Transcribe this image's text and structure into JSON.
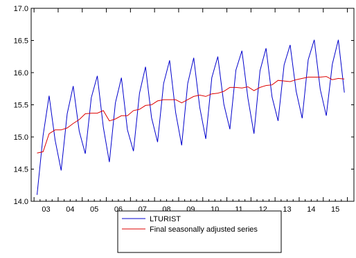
{
  "chart_data": {
    "type": "line",
    "title": "",
    "xlabel": "",
    "ylabel": "",
    "ylim": [
      14.0,
      17.0
    ],
    "yticks": [
      "14.0",
      "14.5",
      "15.0",
      "15.5",
      "16.0",
      "16.5",
      "17.0"
    ],
    "xticks": [
      "03",
      "04",
      "05",
      "06",
      "07",
      "08",
      "09",
      "10",
      "11",
      "12",
      "13",
      "14",
      "15"
    ],
    "x_start": "2003Q1",
    "frequency": "quarterly",
    "grid": false,
    "legend_position": "bottom-center",
    "series": [
      {
        "name": "LTURIST",
        "color": "#0000cc",
        "values": [
          14.1,
          15.02,
          15.64,
          14.95,
          14.48,
          15.36,
          15.79,
          15.09,
          14.74,
          15.61,
          15.95,
          15.15,
          14.61,
          15.53,
          15.92,
          15.11,
          14.78,
          15.68,
          16.09,
          15.3,
          14.92,
          15.83,
          16.19,
          15.38,
          14.87,
          15.83,
          16.23,
          15.46,
          14.97,
          15.92,
          16.25,
          15.51,
          15.12,
          16.04,
          16.34,
          15.6,
          15.05,
          16.03,
          16.38,
          15.62,
          15.25,
          16.12,
          16.43,
          15.71,
          15.29,
          16.2,
          16.51,
          15.74,
          15.33,
          16.13,
          16.51,
          15.69
        ]
      },
      {
        "name": "Final seasonally adjusted series",
        "color": "#dd0000",
        "values": [
          14.75,
          14.77,
          15.05,
          15.11,
          15.11,
          15.14,
          15.21,
          15.27,
          15.36,
          15.37,
          15.37,
          15.41,
          15.25,
          15.28,
          15.33,
          15.33,
          15.41,
          15.43,
          15.49,
          15.5,
          15.56,
          15.58,
          15.58,
          15.58,
          15.53,
          15.58,
          15.63,
          15.65,
          15.63,
          15.67,
          15.68,
          15.71,
          15.77,
          15.77,
          15.76,
          15.78,
          15.72,
          15.77,
          15.8,
          15.81,
          15.88,
          15.87,
          15.86,
          15.89,
          15.91,
          15.93,
          15.93,
          15.93,
          15.94,
          15.89,
          15.91,
          15.9
        ]
      }
    ]
  }
}
